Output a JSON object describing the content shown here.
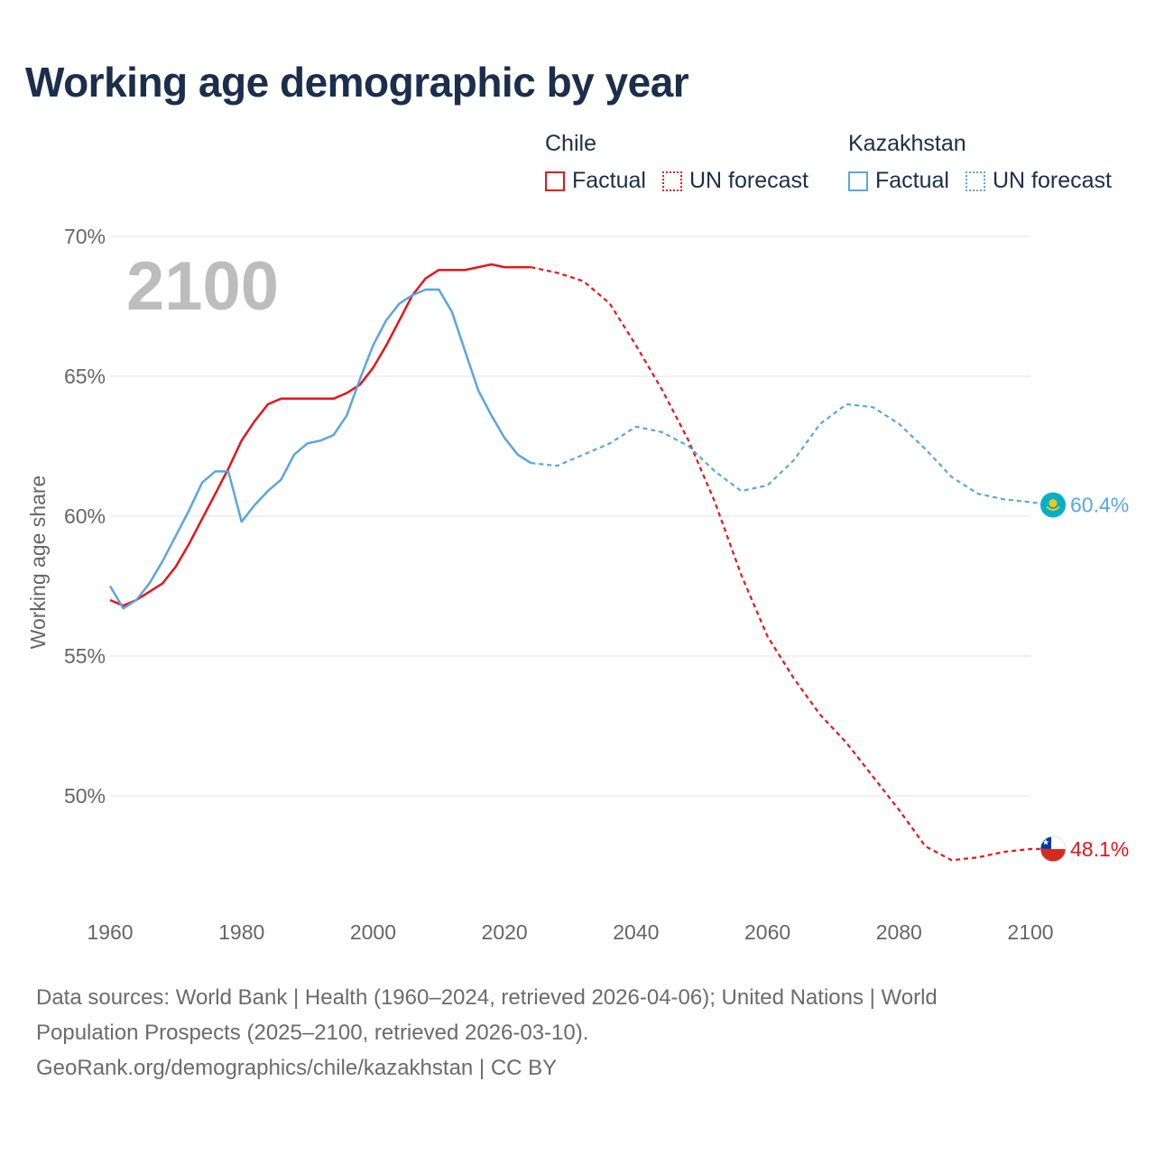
{
  "title": "Working age demographic by year",
  "legend": {
    "groups": [
      {
        "name": "Chile",
        "color": "#e8141a",
        "factual_label": "Factual",
        "forecast_label": "UN forecast"
      },
      {
        "name": "Kazakhstan",
        "color": "#5aa5e2",
        "factual_label": "Factual",
        "forecast_label": "UN forecast"
      }
    ]
  },
  "chart_data": {
    "type": "line",
    "title": "Working age demographic by year",
    "xlabel": "",
    "ylabel": "Working age share",
    "xlim": [
      1960,
      2100
    ],
    "ylim": [
      46,
      70
    ],
    "x_ticks": [
      1960,
      1980,
      2000,
      2020,
      2040,
      2060,
      2080,
      2100
    ],
    "y_ticks": [
      {
        "value": 50,
        "label": "50%"
      },
      {
        "value": 55,
        "label": "55%"
      },
      {
        "value": 60,
        "label": "60%"
      },
      {
        "value": 65,
        "label": "65%"
      },
      {
        "value": 70,
        "label": "70%"
      }
    ],
    "grid": true,
    "year_overlay": "2100",
    "series": [
      {
        "name": "Chile",
        "color": "#e8141a",
        "end_label": "48.1%",
        "factual": {
          "x": [
            1960,
            1962,
            1964,
            1966,
            1968,
            1970,
            1972,
            1974,
            1976,
            1978,
            1980,
            1982,
            1984,
            1986,
            1988,
            1990,
            1992,
            1994,
            1996,
            1998,
            2000,
            2002,
            2004,
            2006,
            2008,
            2010,
            2012,
            2014,
            2016,
            2018,
            2020,
            2022,
            2024
          ],
          "y": [
            57.0,
            56.8,
            57.0,
            57.3,
            57.6,
            58.2,
            59.0,
            59.9,
            60.8,
            61.7,
            62.7,
            63.4,
            64.0,
            64.2,
            64.2,
            64.2,
            64.2,
            64.2,
            64.4,
            64.7,
            65.3,
            66.1,
            67.0,
            67.9,
            68.5,
            68.8,
            68.8,
            68.8,
            68.9,
            69.0,
            68.9,
            68.9,
            68.9
          ]
        },
        "forecast": {
          "x": [
            2024,
            2028,
            2032,
            2036,
            2040,
            2044,
            2048,
            2052,
            2056,
            2060,
            2064,
            2068,
            2072,
            2076,
            2080,
            2084,
            2088,
            2092,
            2096,
            2100,
            2103
          ],
          "y": [
            68.9,
            68.7,
            68.4,
            67.6,
            66.1,
            64.5,
            62.7,
            60.5,
            57.9,
            55.7,
            54.2,
            52.9,
            51.9,
            50.7,
            49.5,
            48.2,
            47.7,
            47.8,
            48.0,
            48.1,
            48.1
          ]
        }
      },
      {
        "name": "Kazakhstan",
        "color": "#5aa5e2",
        "end_label": "60.4%",
        "factual": {
          "x": [
            1960,
            1962,
            1964,
            1966,
            1968,
            1970,
            1972,
            1974,
            1976,
            1978,
            1980,
            1982,
            1984,
            1986,
            1988,
            1990,
            1992,
            1994,
            1996,
            1998,
            2000,
            2002,
            2004,
            2006,
            2008,
            2010,
            2012,
            2014,
            2016,
            2018,
            2020,
            2022,
            2024
          ],
          "y": [
            57.5,
            56.7,
            57.0,
            57.6,
            58.4,
            59.3,
            60.2,
            61.2,
            61.6,
            61.6,
            59.8,
            60.4,
            60.9,
            61.3,
            62.2,
            62.6,
            62.7,
            62.9,
            63.6,
            64.9,
            66.1,
            67.0,
            67.6,
            67.9,
            68.1,
            68.1,
            67.3,
            65.9,
            64.5,
            63.6,
            62.8,
            62.2,
            61.9
          ]
        },
        "forecast": {
          "x": [
            2024,
            2028,
            2032,
            2036,
            2040,
            2044,
            2048,
            2052,
            2056,
            2060,
            2064,
            2068,
            2072,
            2076,
            2080,
            2084,
            2088,
            2092,
            2096,
            2100,
            2103
          ],
          "y": [
            61.9,
            61.8,
            62.2,
            62.6,
            63.2,
            63.0,
            62.5,
            61.6,
            60.9,
            61.1,
            62.0,
            63.3,
            64.0,
            63.9,
            63.3,
            62.4,
            61.4,
            60.8,
            60.6,
            60.5,
            60.4
          ]
        }
      }
    ]
  },
  "footer": {
    "line1": "Data sources: World Bank | Health (1960–2024, retrieved 2026-04-06); United Nations | World",
    "line2": "Population Prospects (2025–2100, retrieved 2026-03-10).",
    "line3": "GeoRank.org/demographics/chile/kazakhstan | CC BY"
  }
}
